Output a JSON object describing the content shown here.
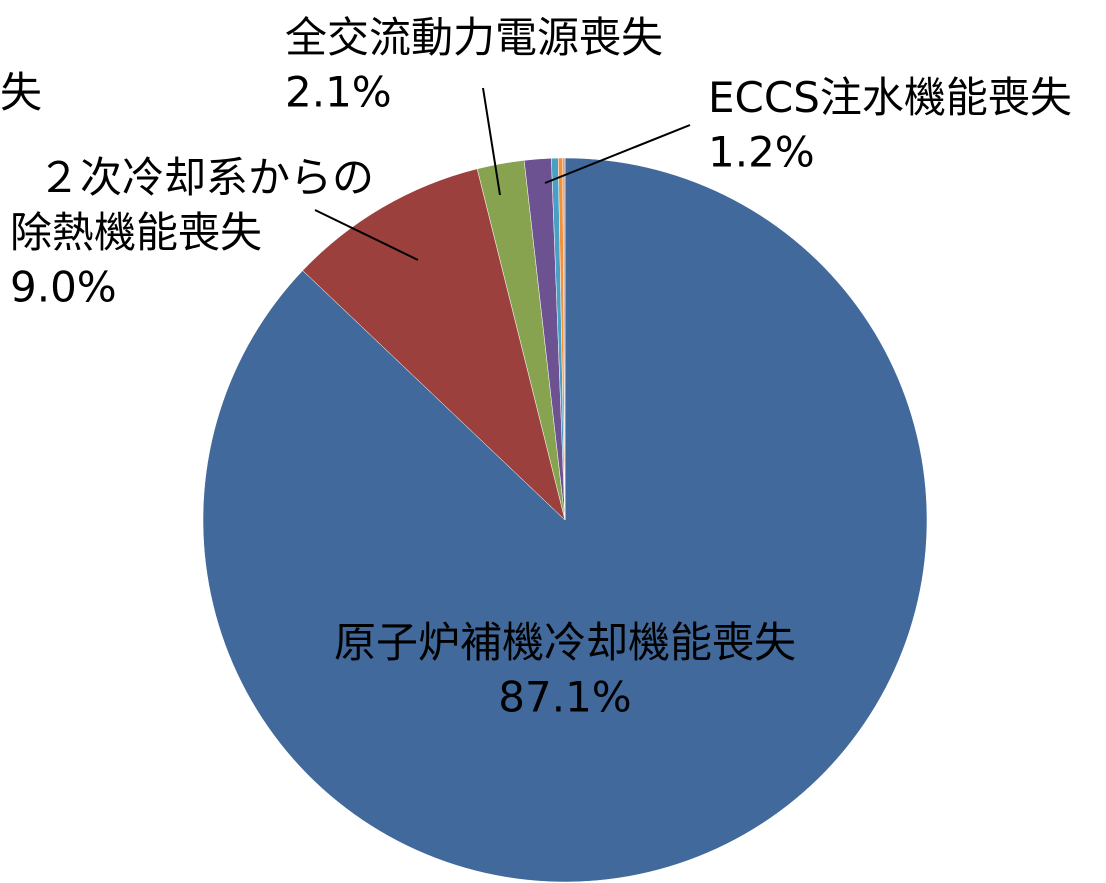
{
  "chart_data": {
    "type": "pie",
    "categories": [
      "原子炉補機冷却機能喪失",
      "２次冷却系からの除熱機能喪失",
      "全交流動力電源喪失",
      "ECCS注水機能喪失",
      "失",
      null,
      null
    ],
    "values": [
      87.1,
      9.0,
      2.1,
      1.2,
      0.3,
      0.2,
      0.1
    ],
    "value_labels": [
      "87.1%",
      "9.0%",
      "2.1%",
      "1.2%",
      null,
      null,
      null
    ],
    "colors": [
      "#41699b",
      "#9c403e",
      "#87a34f",
      "#6d5291",
      "#4aa0c4",
      "#f0923d",
      "#c4a3a3"
    ]
  }
}
